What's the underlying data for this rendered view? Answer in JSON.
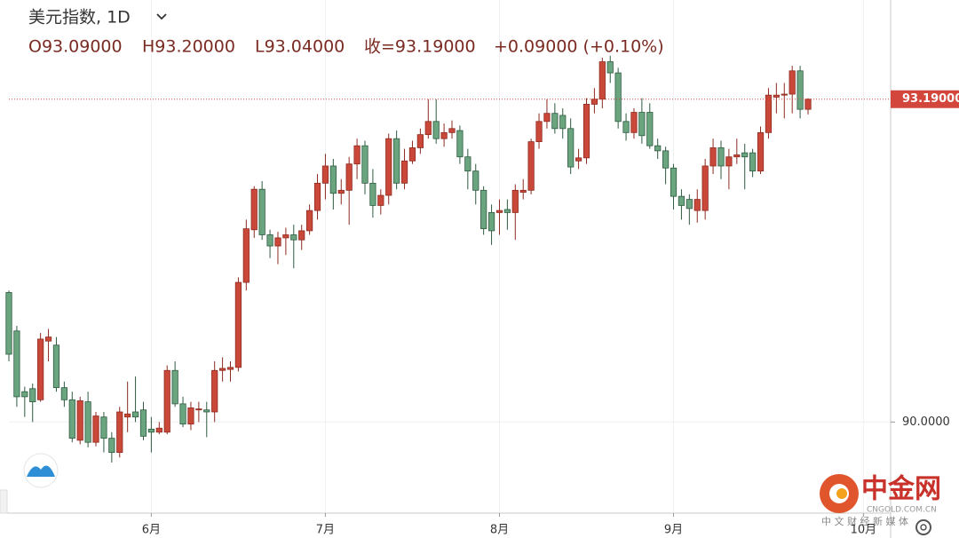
{
  "chart_data": {
    "type": "candlestick",
    "title": "美元指数, 1D",
    "ohlc_header": [
      "O93.09000",
      "H93.20000",
      "L93.04000",
      "收=93.19000",
      "+0.09000 (+0.10%)"
    ],
    "up_color": "#c9483a",
    "down_color": "#6aa57f",
    "last_price": {
      "value": 93.19,
      "label": "93.19000"
    },
    "last_price_color": "#d2463b",
    "x": [
      0,
      1,
      2,
      3,
      4,
      5,
      6,
      7,
      8,
      9,
      10,
      11,
      12,
      13,
      14,
      15,
      16,
      17,
      18,
      19,
      20,
      21,
      22,
      23,
      24,
      25,
      26,
      27,
      28,
      29,
      30,
      31,
      32,
      33,
      34,
      35,
      36,
      37,
      38,
      39,
      40,
      41,
      42,
      43,
      44,
      45,
      46,
      47,
      48,
      49,
      50,
      51,
      52,
      53,
      54,
      55,
      56,
      57,
      58,
      59,
      60,
      61,
      62,
      63,
      64,
      65,
      66,
      67,
      68,
      69,
      70,
      71,
      72,
      73,
      74,
      75,
      76,
      77,
      78,
      79,
      80,
      81,
      82,
      83,
      84,
      85,
      86,
      87,
      88,
      89,
      90,
      91,
      92,
      93,
      94,
      95,
      96,
      97,
      98,
      99,
      100,
      101
    ],
    "open": [
      91.28,
      90.9,
      90.3,
      90.33,
      90.22,
      90.8,
      90.76,
      90.34,
      90.22,
      89.82,
      90.2,
      89.8,
      90.05,
      89.84,
      89.7,
      90.05,
      90.1,
      90.12,
      89.93,
      89.9,
      89.9,
      90.51,
      90.18,
      89.98,
      90.12,
      90.12,
      90.1,
      90.51,
      90.52,
      90.54,
      91.38,
      91.9,
      92.3,
      91.85,
      91.74,
      91.82,
      91.85,
      91.8,
      91.89,
      92.09,
      92.36,
      92.53,
      92.26,
      92.29,
      92.55,
      92.73,
      92.36,
      92.14,
      92.24,
      92.8,
      92.36,
      92.58,
      92.71,
      92.84,
      92.97,
      92.8,
      92.86,
      92.88,
      92.62,
      92.48,
      92.29,
      92.07,
      92.07,
      92.1,
      92.07,
      92.27,
      92.29,
      92.77,
      92.97,
      93.05,
      93.03,
      92.9,
      92.58,
      92.61,
      93.14,
      93.19,
      93.56,
      93.45,
      92.97,
      92.86,
      93.06,
      93.06,
      92.73,
      92.68,
      92.51,
      92.23,
      92.2,
      92.09,
      92.09,
      92.53,
      92.71,
      92.53,
      92.62,
      92.66,
      92.66,
      92.48,
      92.86,
      93.21,
      93.23,
      93.24,
      93.47,
      93.09
    ],
    "high": [
      91.3,
      90.95,
      90.35,
      90.38,
      90.88,
      90.92,
      90.84,
      90.4,
      90.3,
      90.25,
      90.3,
      90.1,
      90.1,
      89.9,
      90.15,
      90.4,
      90.45,
      90.2,
      90.05,
      90.0,
      90.56,
      90.6,
      90.25,
      90.2,
      90.2,
      90.2,
      90.6,
      90.64,
      90.6,
      91.43,
      92.0,
      92.33,
      92.38,
      91.9,
      91.88,
      91.92,
      91.95,
      91.95,
      92.15,
      92.45,
      92.65,
      92.6,
      92.4,
      92.62,
      92.8,
      92.78,
      92.5,
      92.3,
      92.85,
      92.88,
      92.7,
      92.78,
      92.9,
      93.19,
      93.19,
      92.95,
      92.98,
      92.93,
      92.7,
      92.55,
      92.33,
      92.15,
      92.2,
      92.2,
      92.35,
      92.4,
      92.8,
      93.05,
      93.19,
      93.15,
      93.1,
      93.0,
      92.7,
      93.2,
      93.3,
      93.6,
      93.62,
      93.5,
      93.05,
      93.1,
      93.2,
      93.15,
      92.8,
      92.72,
      92.55,
      92.3,
      92.25,
      92.3,
      92.6,
      92.8,
      92.78,
      92.7,
      92.8,
      92.75,
      92.7,
      92.92,
      93.3,
      93.35,
      93.35,
      93.52,
      93.52,
      93.2
    ],
    "low": [
      90.6,
      90.15,
      90.05,
      90.0,
      90.2,
      90.6,
      90.3,
      90.15,
      89.8,
      89.78,
      89.75,
      89.76,
      89.7,
      89.6,
      89.65,
      89.9,
      90.0,
      89.82,
      89.7,
      89.88,
      89.88,
      90.15,
      89.95,
      89.92,
      90.0,
      89.85,
      90.0,
      90.4,
      90.4,
      90.5,
      91.3,
      91.82,
      91.8,
      91.62,
      91.56,
      91.65,
      91.52,
      91.7,
      91.85,
      92.0,
      92.2,
      92.1,
      92.15,
      91.95,
      92.4,
      92.25,
      92.02,
      92.05,
      92.15,
      92.3,
      92.3,
      92.55,
      92.65,
      92.8,
      92.75,
      92.72,
      92.8,
      92.55,
      92.3,
      92.15,
      91.85,
      91.75,
      91.85,
      91.9,
      91.8,
      92.2,
      92.25,
      92.7,
      92.9,
      92.85,
      92.8,
      92.45,
      92.5,
      92.55,
      93.05,
      93.1,
      93.35,
      92.9,
      92.78,
      92.8,
      92.75,
      92.7,
      92.6,
      92.35,
      92.1,
      92.0,
      91.95,
      91.97,
      92.0,
      92.45,
      92.4,
      92.3,
      92.55,
      92.3,
      92.42,
      92.45,
      92.8,
      93.05,
      93.0,
      93.05,
      93.0,
      93.04
    ],
    "close": [
      90.67,
      90.25,
      90.25,
      90.2,
      90.82,
      90.84,
      90.34,
      90.22,
      89.84,
      90.21,
      89.8,
      90.06,
      89.84,
      89.7,
      90.1,
      90.08,
      90.05,
      89.86,
      89.9,
      89.94,
      90.51,
      90.18,
      89.98,
      90.14,
      90.13,
      90.1,
      90.51,
      90.53,
      90.54,
      91.38,
      91.91,
      92.3,
      91.85,
      91.74,
      91.82,
      91.85,
      91.8,
      91.89,
      92.09,
      92.36,
      92.53,
      92.26,
      92.29,
      92.55,
      92.73,
      92.36,
      92.14,
      92.24,
      92.8,
      92.36,
      92.58,
      92.71,
      92.84,
      92.97,
      92.8,
      92.86,
      92.9,
      92.62,
      92.48,
      92.29,
      91.91,
      91.89,
      92.09,
      92.07,
      92.29,
      92.29,
      92.77,
      92.97,
      93.05,
      92.9,
      92.9,
      92.52,
      92.61,
      93.14,
      93.19,
      93.56,
      93.45,
      92.97,
      92.86,
      93.06,
      92.83,
      92.73,
      92.68,
      92.51,
      92.23,
      92.14,
      92.11,
      92.2,
      92.53,
      92.71,
      92.53,
      92.62,
      92.64,
      92.62,
      92.48,
      92.86,
      93.23,
      93.23,
      93.24,
      93.47,
      93.09,
      93.19
    ],
    "xlim": [
      0,
      111.1
    ],
    "xticks": [
      {
        "value": 18,
        "label": "6月"
      },
      {
        "value": 40,
        "label": "7月"
      },
      {
        "value": 62,
        "label": "8月"
      },
      {
        "value": 84,
        "label": "9月"
      },
      {
        "value": 108,
        "label": "10月"
      }
    ],
    "ylim": [
      89.1,
      94.17
    ],
    "yticks": [
      {
        "value": 90,
        "label": "90.0000"
      }
    ],
    "grid": true
  },
  "watermark": {
    "brand": "中金网",
    "domain": "CNGOLD.COM.CN",
    "slogan": "中 文 财 经 新 媒 体"
  }
}
